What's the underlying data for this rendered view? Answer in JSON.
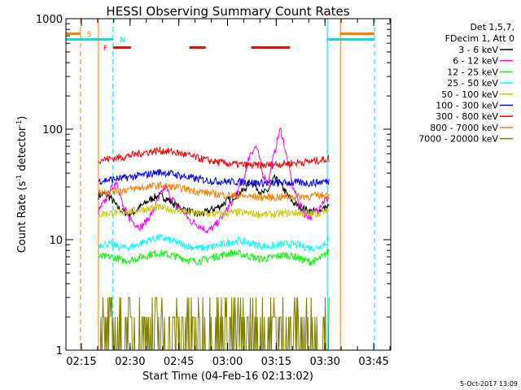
{
  "chart_data": {
    "type": "line",
    "title": "HESSI Observing Summary Count Rates",
    "xlabel": "Start Time (04-Feb-16 02:13:02)",
    "ylabel": "Count Rate (s⁻¹ detector⁻¹)",
    "ylabel_base": "Count Rate (s",
    "ylabel_mid": " detector",
    "ylabel_end": ")",
    "ylabel_sup": "-1",
    "yscale": "log",
    "ylim": [
      1,
      1000
    ],
    "xlim_minutes": [
      0,
      100
    ],
    "x_ticks": [
      "02:15",
      "02:30",
      "02:45",
      "03:00",
      "03:15",
      "03:30",
      "03:45"
    ],
    "y_ticks": [
      "1",
      "10",
      "100",
      "1000"
    ],
    "legend_header": [
      "Det 1,5,7,",
      "FDecim 1, Att 0"
    ],
    "footer_date": "5-Oct-2017 13:09",
    "flags": {
      "saa_label": "S",
      "night_label": "N",
      "flare_label": "F",
      "saa_color": "#ff7f00",
      "night_color": "#00e0e0",
      "flare_color": "#ff0000",
      "saa_intervals_min": [
        [
          0,
          4.5
        ],
        [
          84.5,
          95
        ]
      ],
      "night_intervals_min": [
        [
          0,
          14.5
        ],
        [
          80.5,
          95
        ]
      ],
      "flare_intervals_min": [
        [
          14.5,
          20
        ],
        [
          38,
          43
        ],
        [
          57,
          69
        ]
      ]
    },
    "data_window_min": [
      10,
      81
    ],
    "vertical_lines": [
      {
        "minute": 0,
        "color": "#00e0e0",
        "style": "solid"
      },
      {
        "minute": 4.5,
        "color": "#ff7f00",
        "style": "dash"
      },
      {
        "minute": 10,
        "color": "#ff7f00",
        "style": "solid"
      },
      {
        "minute": 14.5,
        "color": "#00e0e0",
        "style": "dash"
      },
      {
        "minute": 80.5,
        "color": "#00e0e0",
        "style": "solid"
      },
      {
        "minute": 84.5,
        "color": "#ff7f00",
        "style": "solid"
      },
      {
        "minute": 95,
        "color": "#00e0e0",
        "style": "dash"
      }
    ],
    "series": [
      {
        "name": "3 - 6 keV",
        "color": "#000000",
        "values": [
          25,
          26,
          24,
          20,
          18,
          17,
          18,
          20,
          22,
          24,
          25,
          24,
          22,
          20,
          19,
          18,
          17,
          17,
          18,
          19,
          20,
          22,
          24,
          26,
          28,
          34,
          30,
          26,
          28,
          36,
          32,
          26,
          22,
          20,
          19,
          18,
          18,
          19,
          20
        ]
      },
      {
        "name": "6 - 12 keV",
        "color": "#ff00ff",
        "values": [
          18,
          22,
          28,
          34,
          20,
          16,
          14,
          13,
          15,
          18,
          24,
          30,
          24,
          20,
          18,
          15,
          14,
          13,
          12,
          13,
          15,
          18,
          22,
          28,
          36,
          60,
          70,
          40,
          32,
          60,
          100,
          55,
          30,
          22,
          17,
          16,
          19,
          22,
          24
        ]
      },
      {
        "name": "12 - 25 keV",
        "color": "#00ff00",
        "values": [
          7,
          7,
          7,
          6.8,
          6.5,
          6.5,
          6.7,
          7,
          7.2,
          7.5,
          7.6,
          7.4,
          7.2,
          7,
          6.8,
          6.5,
          6.4,
          6.5,
          6.7,
          7,
          7.2,
          7.4,
          7.6,
          7.5,
          7.3,
          7,
          6.8,
          6.7,
          6.8,
          7,
          7.2,
          7.3,
          7.1,
          6.8,
          6.5,
          6.3,
          6.5,
          7,
          8
        ]
      },
      {
        "name": "25 - 50 keV",
        "color": "#00ffff",
        "values": [
          9,
          9.2,
          9.1,
          8.8,
          8.5,
          8.5,
          8.8,
          9.3,
          9.8,
          10.2,
          10.5,
          10.2,
          9.8,
          9.4,
          9,
          8.7,
          8.5,
          8.4,
          8.5,
          8.7,
          9,
          9.3,
          9.6,
          9.8,
          9.6,
          9.3,
          9,
          8.8,
          8.7,
          8.8,
          9,
          9.2,
          9.1,
          8.9,
          8.6,
          8.4,
          8.5,
          9,
          10
        ]
      },
      {
        "name": "50 - 100 keV",
        "color": "#cccc00",
        "values": [
          17,
          17.2,
          17.5,
          17.6,
          17.8,
          18,
          18.3,
          18.6,
          19,
          19.3,
          19.5,
          19.2,
          18.8,
          18.4,
          18,
          17.6,
          17.4,
          17.2,
          17,
          17,
          17.1,
          17.3,
          17.5,
          17.6,
          17.5,
          17.3,
          17.1,
          17,
          16.9,
          17,
          17.2,
          17.4,
          17.5,
          17.4,
          17.2,
          17,
          17.3,
          17.8,
          18.5
        ]
      },
      {
        "name": "100 - 300 keV",
        "color": "#0000ff",
        "values": [
          34,
          34.5,
          35,
          35.5,
          36,
          36.8,
          37.5,
          38.2,
          39,
          40,
          41,
          40.5,
          39.5,
          38.5,
          37.5,
          36.5,
          35.5,
          35,
          34.5,
          34,
          33.8,
          33.6,
          33.5,
          33.4,
          33.2,
          33,
          32.8,
          32.6,
          32.5,
          32.5,
          32.6,
          32.7,
          32.8,
          32.8,
          32.7,
          32.6,
          33,
          33.5,
          34
        ]
      },
      {
        "name": "300 - 800 keV",
        "color": "#ff0000",
        "values": [
          53,
          53.5,
          54,
          55,
          56,
          57.5,
          59,
          60.5,
          62,
          63,
          64,
          63.5,
          62.5,
          61,
          59.5,
          57.5,
          55.5,
          54,
          52.5,
          51,
          50,
          49,
          48.5,
          48,
          47.5,
          47,
          47,
          47.2,
          47.5,
          48,
          48.5,
          49,
          49.5,
          50,
          50.5,
          51,
          52,
          53,
          54
        ]
      },
      {
        "name": "800 - 7000 keV",
        "color": "#ff7f00",
        "values": [
          27,
          27.2,
          27.5,
          27.8,
          28,
          28.5,
          29,
          29.5,
          30,
          30.5,
          31,
          30.7,
          30.2,
          29.6,
          29,
          28.3,
          27.6,
          27,
          26.5,
          26,
          25.7,
          25.4,
          25.2,
          25,
          24.8,
          24.6,
          24.4,
          24.3,
          24.2,
          24.2,
          24.3,
          24.4,
          24.5,
          24.6,
          24.7,
          24.8,
          25,
          25.3,
          25.6
        ]
      },
      {
        "name": "7000 - 20000 keV",
        "color": "#808000",
        "values": [
          1.6,
          1.5,
          1.7,
          1.6,
          1.5,
          1.6,
          1.8,
          2.2,
          2.5,
          2.7,
          2.6,
          2.4,
          2,
          1.7,
          1.5,
          1.6,
          1.7,
          1.6,
          1.5,
          1.6,
          1.7,
          1.6,
          1.5,
          1.6,
          1.7,
          1.6,
          1.5,
          1.6,
          1.7,
          1.6,
          1.5,
          1.6,
          1.7,
          1.6,
          1.5,
          1.6,
          1.7,
          1.6,
          1.6
        ]
      }
    ]
  }
}
